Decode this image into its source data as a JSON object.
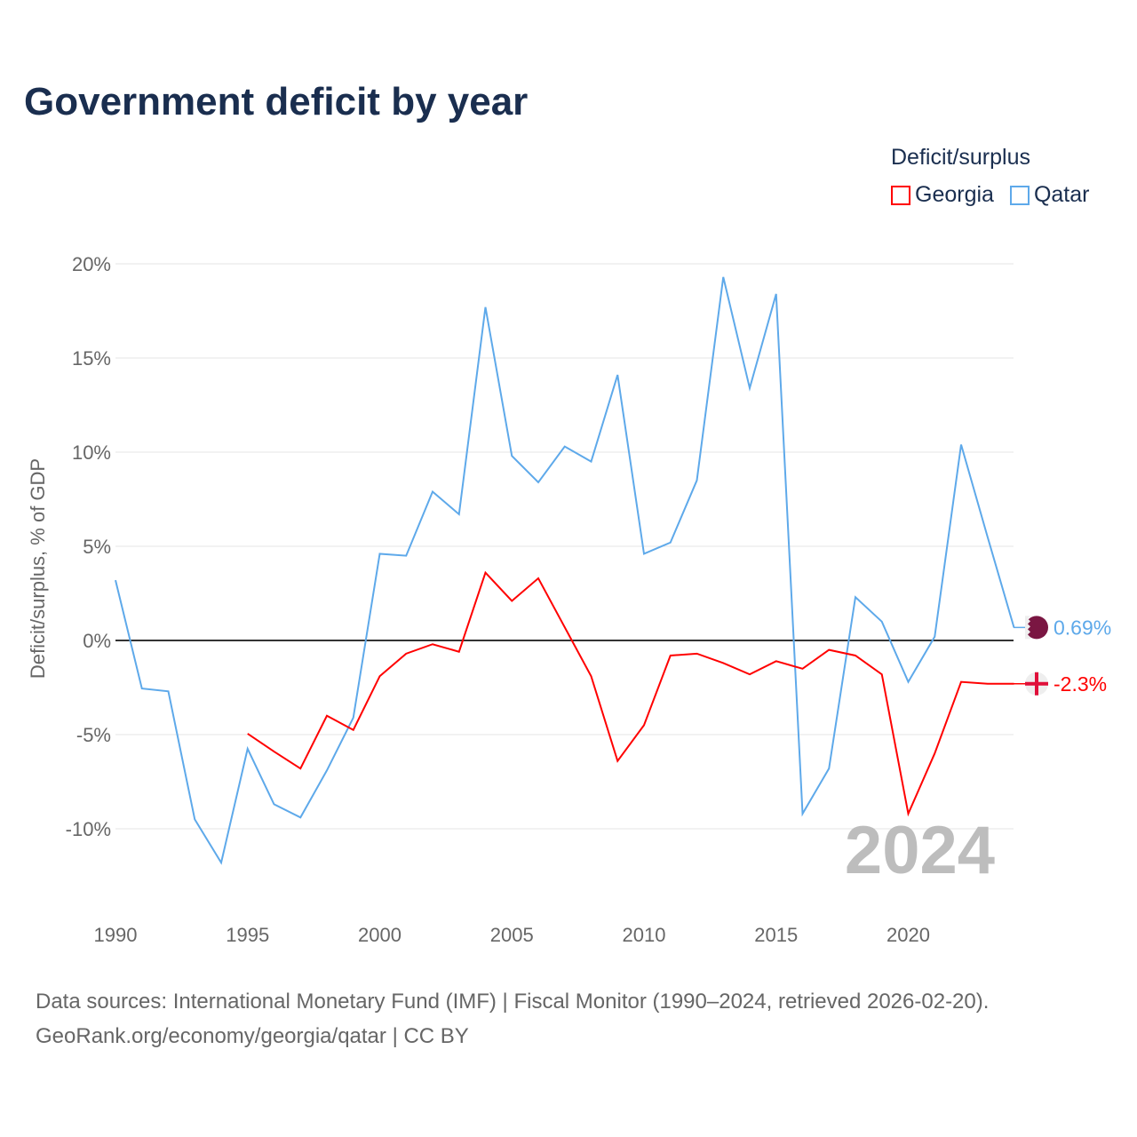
{
  "chart_data": {
    "type": "line",
    "title": "Government deficit by year",
    "ylabel": "Deficit/surplus, % of GDP",
    "xlabel": "",
    "legend_title": "Deficit/surplus",
    "legend_position": "top-right",
    "ylim": [
      -13,
      21
    ],
    "xlim": [
      1990,
      2024
    ],
    "yticks": [
      20,
      15,
      10,
      5,
      0,
      -5,
      -10
    ],
    "ytick_labels": [
      "20%",
      "15%",
      "10%",
      "5%",
      "0%",
      "-5%",
      "-10%"
    ],
    "xticks": [
      1990,
      1995,
      2000,
      2005,
      2010,
      2015,
      2020
    ],
    "xtick_labels": [
      "1990",
      "1995",
      "2000",
      "2005",
      "2010",
      "2015",
      "2020"
    ],
    "watermark_year": "2024",
    "series": [
      {
        "name": "Georgia",
        "color": "#ff0000",
        "end_label": "-2.3%",
        "x": [
          1995,
          1996,
          1997,
          1998,
          1999,
          2000,
          2001,
          2002,
          2003,
          2004,
          2005,
          2006,
          2007,
          2008,
          2009,
          2010,
          2011,
          2012,
          2013,
          2014,
          2015,
          2016,
          2017,
          2018,
          2019,
          2020,
          2021,
          2022,
          2023,
          2024
        ],
        "values": [
          -4.95,
          -5.9,
          -6.8,
          -4.0,
          -4.75,
          -1.9,
          -0.7,
          -0.2,
          -0.6,
          3.6,
          2.1,
          3.3,
          0.7,
          -1.9,
          -6.4,
          -4.5,
          -0.8,
          -0.7,
          -1.2,
          -1.8,
          -1.1,
          -1.5,
          -0.5,
          -0.8,
          -1.8,
          -9.2,
          -6.0,
          -2.2,
          -2.3,
          -2.3
        ]
      },
      {
        "name": "Qatar",
        "color": "#5ea9ea",
        "end_label": "0.69%",
        "x": [
          1990,
          1991,
          1992,
          1993,
          1994,
          1995,
          1996,
          1997,
          1998,
          1999,
          2000,
          2001,
          2002,
          2003,
          2004,
          2005,
          2006,
          2007,
          2008,
          2009,
          2010,
          2011,
          2012,
          2013,
          2014,
          2015,
          2016,
          2017,
          2018,
          2019,
          2020,
          2021,
          2022,
          2023,
          2024
        ],
        "values": [
          3.2,
          -2.55,
          -2.7,
          -9.5,
          -11.8,
          -5.75,
          -8.7,
          -9.4,
          -6.9,
          -4.1,
          4.6,
          4.5,
          7.9,
          6.7,
          17.7,
          9.8,
          8.4,
          10.3,
          9.5,
          14.1,
          4.6,
          5.2,
          8.5,
          19.3,
          13.4,
          18.4,
          -9.2,
          -6.8,
          2.3,
          1.0,
          -2.2,
          0.2,
          10.4,
          5.5,
          0.69
        ]
      }
    ]
  },
  "source_line1": "Data sources: International Monetary Fund (IMF) | Fiscal Monitor (1990–2024, retrieved 2026-02-20).",
  "source_line2": "GeoRank.org/economy/georgia/qatar | CC BY"
}
